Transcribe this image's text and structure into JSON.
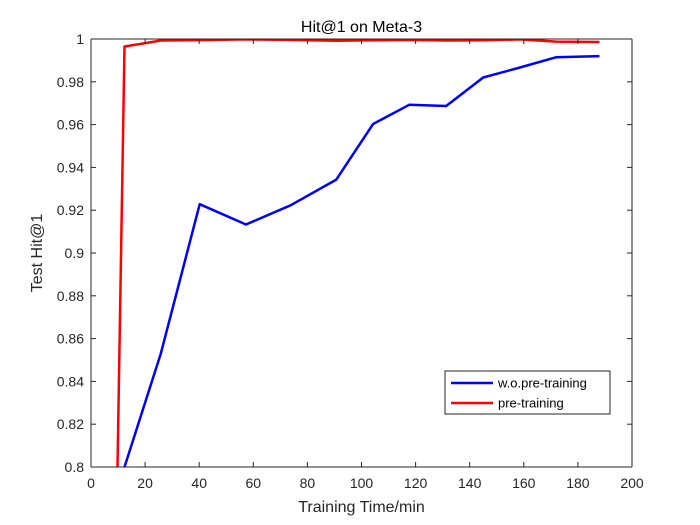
{
  "chart_data": {
    "type": "line",
    "title": "Hit@1 on Meta-3",
    "xlabel": "Training Time/min",
    "ylabel": "Test Hit@1",
    "xlim": [
      0,
      200
    ],
    "ylim": [
      0.8,
      1.0
    ],
    "xticks": [
      0,
      20,
      40,
      60,
      80,
      100,
      120,
      140,
      160,
      180,
      200
    ],
    "yticks": [
      0.8,
      0.82,
      0.84,
      0.86,
      0.88,
      0.9,
      0.92,
      0.94,
      0.96,
      0.98,
      1.0
    ],
    "xtick_labels": [
      "0",
      "20",
      "40",
      "60",
      "80",
      "100",
      "120",
      "140",
      "160",
      "180",
      "200"
    ],
    "ytick_labels": [
      "0.8",
      "0.82",
      "0.84",
      "0.86",
      "0.88",
      "0.9",
      "0.92",
      "0.94",
      "0.96",
      "0.98",
      "1"
    ],
    "grid": false,
    "legend_position": "lower-right",
    "series": [
      {
        "name": "w.o.pre-training",
        "color": "#0000ff",
        "x": [
          12.4,
          25.8,
          40.2,
          57.3,
          73.8,
          90.7,
          104.3,
          117.7,
          131.3,
          145.0,
          158.6,
          172.0,
          188.0
        ],
        "y": [
          0.8,
          0.853,
          0.9228,
          0.9133,
          0.9223,
          0.9343,
          0.9603,
          0.9693,
          0.9687,
          0.982,
          0.9867,
          0.9915,
          0.992
        ]
      },
      {
        "name": "pre-training",
        "color": "#ff0000",
        "x": [
          9.8,
          12.4,
          25.8,
          40.2,
          57.3,
          73.8,
          90.7,
          104.3,
          117.7,
          131.3,
          145.0,
          158.6,
          172.0,
          188.0
        ],
        "y": [
          0.8,
          0.9965,
          0.9993,
          0.9995,
          0.9998,
          0.9996,
          0.9992,
          0.9994,
          0.9996,
          0.9993,
          0.9994,
          0.9998,
          0.9988,
          0.9986
        ]
      }
    ]
  }
}
